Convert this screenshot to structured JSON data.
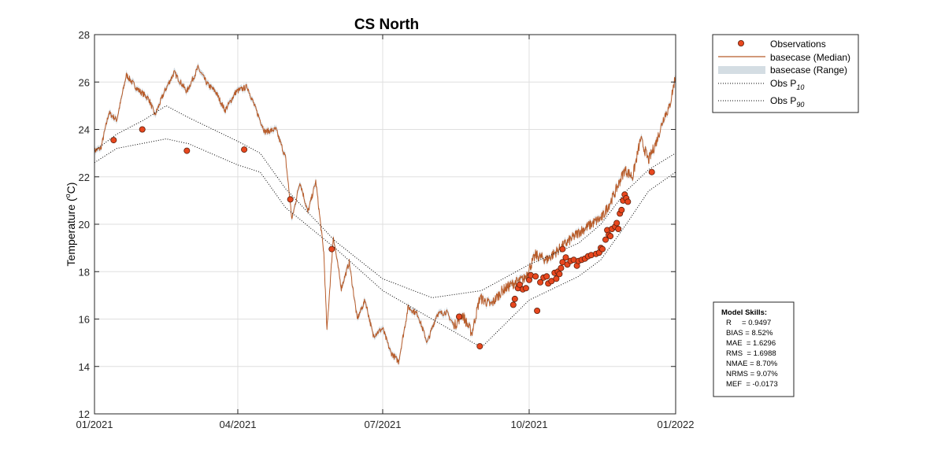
{
  "chart_data": {
    "type": "line",
    "title": "CS North",
    "xlabel": "",
    "ylabel": "Temperature (°C)",
    "ylabel_main": "Temperature (",
    "ylabel_deg": "o",
    "ylabel_unit": "C)",
    "ylim": [
      12,
      28
    ],
    "xlim": [
      "2021-01-01",
      "2022-01-01"
    ],
    "y_ticks": [
      12,
      14,
      16,
      18,
      20,
      22,
      24,
      26,
      28
    ],
    "x_ticks": [
      {
        "date": "2021-01-01",
        "label": "01/2021"
      },
      {
        "date": "2021-04-01",
        "label": "04/2021"
      },
      {
        "date": "2021-07-01",
        "label": "07/2021"
      },
      {
        "date": "2021-10-01",
        "label": "10/2021"
      },
      {
        "date": "2022-01-01",
        "label": "01/2022"
      }
    ],
    "grid": true,
    "legend_position": "outside-top-right",
    "series": [
      {
        "name": "Observations",
        "kind": "scatter",
        "color": "#e8471e",
        "points": [
          [
            "2021-01-13",
            23.55
          ],
          [
            "2021-01-31",
            24.0
          ],
          [
            "2021-02-28",
            23.1
          ],
          [
            "2021-04-05",
            23.15
          ],
          [
            "2021-05-04",
            21.05
          ],
          [
            "2021-05-30",
            18.95
          ],
          [
            "2021-08-18",
            16.1
          ],
          [
            "2021-08-31",
            14.85
          ],
          [
            "2021-10-06",
            16.35
          ],
          [
            "2021-09-21",
            16.6
          ],
          [
            "2021-09-22",
            16.85
          ],
          [
            "2021-09-24",
            17.3
          ],
          [
            "2021-09-25",
            17.45
          ],
          [
            "2021-09-27",
            17.25
          ],
          [
            "2021-09-29",
            17.3
          ],
          [
            "2021-10-01",
            17.65
          ],
          [
            "2021-10-02",
            17.85
          ],
          [
            "2021-10-05",
            17.8
          ],
          [
            "2021-10-08",
            17.55
          ],
          [
            "2021-10-10",
            17.75
          ],
          [
            "2021-10-12",
            17.8
          ],
          [
            "2021-10-13",
            17.5
          ],
          [
            "2021-10-15",
            17.6
          ],
          [
            "2021-10-17",
            17.95
          ],
          [
            "2021-10-18",
            17.7
          ],
          [
            "2021-10-19",
            18.0
          ],
          [
            "2021-10-20",
            17.9
          ],
          [
            "2021-10-21",
            18.15
          ],
          [
            "2021-10-22",
            18.4
          ],
          [
            "2021-10-22",
            18.95
          ],
          [
            "2021-10-24",
            18.6
          ],
          [
            "2021-10-25",
            18.3
          ],
          [
            "2021-10-27",
            18.45
          ],
          [
            "2021-10-29",
            18.5
          ],
          [
            "2021-10-31",
            18.25
          ],
          [
            "2021-11-01",
            18.45
          ],
          [
            "2021-11-03",
            18.5
          ],
          [
            "2021-11-05",
            18.55
          ],
          [
            "2021-11-07",
            18.65
          ],
          [
            "2021-11-09",
            18.7
          ],
          [
            "2021-11-12",
            18.75
          ],
          [
            "2021-11-14",
            18.8
          ],
          [
            "2021-11-15",
            19.0
          ],
          [
            "2021-11-16",
            18.95
          ],
          [
            "2021-11-18",
            19.35
          ],
          [
            "2021-11-19",
            19.75
          ],
          [
            "2021-11-20",
            19.55
          ],
          [
            "2021-11-21",
            19.5
          ],
          [
            "2021-11-22",
            19.8
          ],
          [
            "2021-11-24",
            19.9
          ],
          [
            "2021-11-25",
            20.05
          ],
          [
            "2021-11-26",
            19.8
          ],
          [
            "2021-11-27",
            20.45
          ],
          [
            "2021-11-28",
            20.6
          ],
          [
            "2021-11-29",
            21.0
          ],
          [
            "2021-11-30",
            21.25
          ],
          [
            "2021-12-01",
            21.1
          ],
          [
            "2021-12-02",
            20.95
          ],
          [
            "2021-12-17",
            22.2
          ]
        ]
      },
      {
        "name": "basecase (Median)",
        "kind": "line",
        "color": "#b85c2a",
        "anchors": [
          [
            "2021-01-01",
            23.1
          ],
          [
            "2021-01-05",
            23.2
          ],
          [
            "2021-01-10",
            24.7
          ],
          [
            "2021-01-15",
            24.4
          ],
          [
            "2021-01-21",
            26.3
          ],
          [
            "2021-01-28",
            25.7
          ],
          [
            "2021-02-04",
            25.3
          ],
          [
            "2021-02-08",
            24.6
          ],
          [
            "2021-02-14",
            25.6
          ],
          [
            "2021-02-20",
            26.4
          ],
          [
            "2021-02-28",
            25.6
          ],
          [
            "2021-03-07",
            26.6
          ],
          [
            "2021-03-13",
            25.9
          ],
          [
            "2021-03-18",
            25.6
          ],
          [
            "2021-03-24",
            24.8
          ],
          [
            "2021-03-31",
            25.6
          ],
          [
            "2021-04-07",
            25.8
          ],
          [
            "2021-04-12",
            24.9
          ],
          [
            "2021-04-18",
            23.9
          ],
          [
            "2021-04-25",
            24.0
          ],
          [
            "2021-05-01",
            22.8
          ],
          [
            "2021-05-05",
            20.2
          ],
          [
            "2021-05-10",
            21.8
          ],
          [
            "2021-05-15",
            20.5
          ],
          [
            "2021-05-20",
            21.8
          ],
          [
            "2021-05-25",
            18.8
          ],
          [
            "2021-05-27",
            15.5
          ],
          [
            "2021-05-31",
            19.5
          ],
          [
            "2021-06-05",
            17.3
          ],
          [
            "2021-06-10",
            18.4
          ],
          [
            "2021-06-15",
            16.0
          ],
          [
            "2021-06-20",
            16.8
          ],
          [
            "2021-06-25",
            15.3
          ],
          [
            "2021-07-01",
            15.6
          ],
          [
            "2021-07-06",
            14.6
          ],
          [
            "2021-07-11",
            14.2
          ],
          [
            "2021-07-17",
            16.5
          ],
          [
            "2021-07-23",
            16.2
          ],
          [
            "2021-07-29",
            15.0
          ],
          [
            "2021-08-04",
            16.2
          ],
          [
            "2021-08-10",
            16.3
          ],
          [
            "2021-08-15",
            15.7
          ],
          [
            "2021-08-20",
            16.2
          ],
          [
            "2021-08-26",
            15.4
          ],
          [
            "2021-08-31",
            16.9
          ],
          [
            "2021-09-07",
            16.6
          ],
          [
            "2021-09-14",
            17.2
          ],
          [
            "2021-09-21",
            17.5
          ],
          [
            "2021-09-28",
            17.7
          ],
          [
            "2021-10-05",
            18.7
          ],
          [
            "2021-10-12",
            18.5
          ],
          [
            "2021-10-19",
            18.9
          ],
          [
            "2021-10-26",
            19.3
          ],
          [
            "2021-11-02",
            19.7
          ],
          [
            "2021-11-09",
            20.0
          ],
          [
            "2021-11-16",
            20.3
          ],
          [
            "2021-11-23",
            21.2
          ],
          [
            "2021-11-30",
            22.3
          ],
          [
            "2021-12-05",
            22.0
          ],
          [
            "2021-12-10",
            23.6
          ],
          [
            "2021-12-15",
            22.7
          ],
          [
            "2021-12-20",
            23.5
          ],
          [
            "2021-12-25",
            24.6
          ],
          [
            "2021-12-28",
            24.9
          ],
          [
            "2022-01-01",
            26.3
          ]
        ]
      },
      {
        "name": "basecase (Range)",
        "kind": "band",
        "color": "#d4dde3"
      },
      {
        "name": "Obs P10",
        "legend_label": "Obs P",
        "legend_sub": "10",
        "kind": "dotted",
        "color": "#000000",
        "points": [
          [
            "2021-01-01",
            22.6
          ],
          [
            "2021-01-15",
            23.2
          ],
          [
            "2021-02-15",
            23.6
          ],
          [
            "2021-03-01",
            23.4
          ],
          [
            "2021-04-01",
            22.5
          ],
          [
            "2021-04-15",
            22.2
          ],
          [
            "2021-05-01",
            20.7
          ],
          [
            "2021-06-01",
            19.0
          ],
          [
            "2021-07-01",
            17.2
          ],
          [
            "2021-08-01",
            16.0
          ],
          [
            "2021-09-01",
            14.8
          ],
          [
            "2021-10-01",
            16.8
          ],
          [
            "2021-11-01",
            17.8
          ],
          [
            "2021-11-15",
            18.5
          ],
          [
            "2021-12-01",
            20.0
          ],
          [
            "2021-12-15",
            21.4
          ],
          [
            "2022-01-01",
            22.2
          ]
        ]
      },
      {
        "name": "Obs P90",
        "legend_label": "Obs P",
        "legend_sub": "90",
        "kind": "dotted",
        "color": "#000000",
        "points": [
          [
            "2021-01-01",
            23.1
          ],
          [
            "2021-01-15",
            23.8
          ],
          [
            "2021-02-01",
            24.4
          ],
          [
            "2021-02-15",
            25.0
          ],
          [
            "2021-03-01",
            24.5
          ],
          [
            "2021-04-01",
            23.5
          ],
          [
            "2021-04-15",
            23.0
          ],
          [
            "2021-05-01",
            21.5
          ],
          [
            "2021-06-01",
            19.3
          ],
          [
            "2021-07-01",
            17.7
          ],
          [
            "2021-08-01",
            16.9
          ],
          [
            "2021-09-01",
            17.2
          ],
          [
            "2021-10-01",
            18.3
          ],
          [
            "2021-11-01",
            19.2
          ],
          [
            "2021-11-15",
            20.0
          ],
          [
            "2021-12-01",
            21.4
          ],
          [
            "2021-12-15",
            22.3
          ],
          [
            "2022-01-01",
            23.0
          ]
        ]
      }
    ],
    "annotations": {
      "skills_title": "Model Skills:",
      "skills": [
        "R     = 0.9497",
        "BIAS = 8.52%",
        "MAE  = 1.6296",
        "RMS  = 1.6988",
        "NMAE = 8.70%",
        "NRMS = 9.07%",
        "MEF  = -0.0173"
      ]
    }
  }
}
